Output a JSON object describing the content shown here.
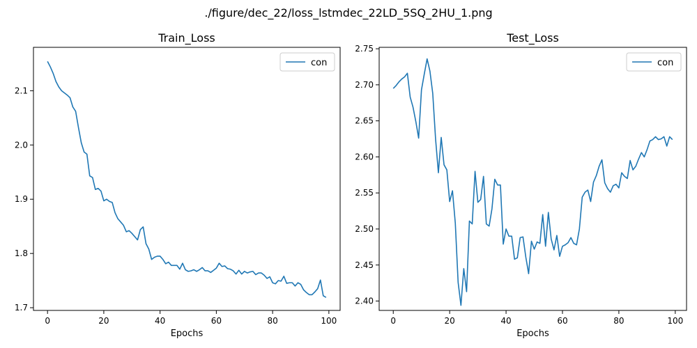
{
  "figure_title": "./figure/dec_22/loss_lstmdec_22LD_5SQ_2HU_1.png",
  "colors": {
    "series": "#1f77b4",
    "axes": "#000000",
    "legend_border": "#cccccc"
  },
  "chart_data": [
    {
      "type": "line",
      "title": "Train_Loss",
      "xlabel": "Epochs",
      "ylabel": "",
      "xlim": [
        -5,
        104
      ],
      "ylim": [
        1.695,
        2.18
      ],
      "xticks": [
        0,
        20,
        40,
        60,
        80,
        100
      ],
      "yticks": [
        1.7,
        1.8,
        1.9,
        2.0,
        2.1
      ],
      "xtick_labels": [
        "0",
        "20",
        "40",
        "60",
        "80",
        "100"
      ],
      "ytick_labels": [
        "1.7",
        "1.8",
        "1.9",
        "2.0",
        "2.1"
      ],
      "legend": {
        "position": "top-right",
        "entries": [
          "con"
        ]
      },
      "grid": false,
      "series": [
        {
          "name": "con",
          "x": [
            0,
            1,
            2,
            3,
            4,
            5,
            6,
            7,
            8,
            9,
            10,
            11,
            12,
            13,
            14,
            15,
            16,
            17,
            18,
            19,
            20,
            21,
            22,
            23,
            24,
            25,
            26,
            27,
            28,
            29,
            30,
            31,
            32,
            33,
            34,
            35,
            36,
            37,
            38,
            39,
            40,
            41,
            42,
            43,
            44,
            45,
            46,
            47,
            48,
            49,
            50,
            51,
            52,
            53,
            54,
            55,
            56,
            57,
            58,
            59,
            60,
            61,
            62,
            63,
            64,
            65,
            66,
            67,
            68,
            69,
            70,
            71,
            72,
            73,
            74,
            75,
            76,
            77,
            78,
            79,
            80,
            81,
            82,
            83,
            84,
            85,
            86,
            87,
            88,
            89,
            90,
            91,
            92,
            93,
            94,
            95,
            96,
            97,
            98,
            99
          ],
          "values": [
            2.154,
            2.144,
            2.132,
            2.117,
            2.107,
            2.1,
            2.096,
            2.092,
            2.087,
            2.07,
            2.062,
            2.032,
            2.004,
            1.987,
            1.983,
            1.943,
            1.94,
            1.918,
            1.92,
            1.915,
            1.897,
            1.9,
            1.896,
            1.894,
            1.875,
            1.864,
            1.858,
            1.852,
            1.84,
            1.842,
            1.837,
            1.831,
            1.825,
            1.844,
            1.849,
            1.818,
            1.808,
            1.789,
            1.793,
            1.795,
            1.795,
            1.789,
            1.781,
            1.784,
            1.778,
            1.778,
            1.778,
            1.771,
            1.782,
            1.77,
            1.767,
            1.768,
            1.77,
            1.767,
            1.77,
            1.774,
            1.768,
            1.768,
            1.765,
            1.769,
            1.773,
            1.782,
            1.776,
            1.777,
            1.772,
            1.771,
            1.768,
            1.762,
            1.769,
            1.762,
            1.767,
            1.764,
            1.766,
            1.767,
            1.761,
            1.764,
            1.764,
            1.76,
            1.754,
            1.757,
            1.746,
            1.744,
            1.75,
            1.749,
            1.758,
            1.745,
            1.746,
            1.746,
            1.74,
            1.746,
            1.743,
            1.733,
            1.728,
            1.724,
            1.724,
            1.729,
            1.735,
            1.751,
            1.722,
            1.719
          ]
        }
      ]
    },
    {
      "type": "line",
      "title": "Test_Loss",
      "xlabel": "Epochs",
      "ylabel": "",
      "xlim": [
        -5,
        104
      ],
      "ylim": [
        2.387,
        2.752
      ],
      "xticks": [
        0,
        20,
        40,
        60,
        80,
        100
      ],
      "yticks": [
        2.4,
        2.45,
        2.5,
        2.55,
        2.6,
        2.65,
        2.7,
        2.75
      ],
      "xtick_labels": [
        "0",
        "20",
        "40",
        "60",
        "80",
        "100"
      ],
      "ytick_labels": [
        "2.40",
        "2.45",
        "2.50",
        "2.55",
        "2.60",
        "2.65",
        "2.70",
        "2.75"
      ],
      "legend": {
        "position": "top-right",
        "entries": [
          "con"
        ]
      },
      "grid": false,
      "series": [
        {
          "name": "con",
          "x": [
            0,
            1,
            2,
            3,
            4,
            5,
            6,
            7,
            8,
            9,
            10,
            11,
            12,
            13,
            14,
            15,
            16,
            17,
            18,
            19,
            20,
            21,
            22,
            23,
            24,
            25,
            26,
            27,
            28,
            29,
            30,
            31,
            32,
            33,
            34,
            35,
            36,
            37,
            38,
            39,
            40,
            41,
            42,
            43,
            44,
            45,
            46,
            47,
            48,
            49,
            50,
            51,
            52,
            53,
            54,
            55,
            56,
            57,
            58,
            59,
            60,
            61,
            62,
            63,
            64,
            65,
            66,
            67,
            68,
            69,
            70,
            71,
            72,
            73,
            74,
            75,
            76,
            77,
            78,
            79,
            80,
            81,
            82,
            83,
            84,
            85,
            86,
            87,
            88,
            89,
            90,
            91,
            92,
            93,
            94,
            95,
            96,
            97,
            98,
            99
          ],
          "values": [
            2.695,
            2.699,
            2.704,
            2.708,
            2.711,
            2.716,
            2.683,
            2.669,
            2.649,
            2.626,
            2.693,
            2.715,
            2.736,
            2.719,
            2.688,
            2.625,
            2.578,
            2.627,
            2.589,
            2.582,
            2.538,
            2.553,
            2.508,
            2.426,
            2.394,
            2.445,
            2.413,
            2.511,
            2.507,
            2.58,
            2.537,
            2.541,
            2.573,
            2.507,
            2.504,
            2.528,
            2.569,
            2.561,
            2.561,
            2.479,
            2.5,
            2.49,
            2.49,
            2.458,
            2.46,
            2.488,
            2.489,
            2.461,
            2.438,
            2.483,
            2.472,
            2.482,
            2.48,
            2.52,
            2.476,
            2.523,
            2.486,
            2.471,
            2.491,
            2.462,
            2.476,
            2.478,
            2.481,
            2.488,
            2.48,
            2.478,
            2.5,
            2.544,
            2.551,
            2.554,
            2.538,
            2.565,
            2.574,
            2.587,
            2.596,
            2.564,
            2.556,
            2.551,
            2.56,
            2.562,
            2.557,
            2.578,
            2.573,
            2.57,
            2.595,
            2.582,
            2.587,
            2.597,
            2.606,
            2.6,
            2.61,
            2.622,
            2.624,
            2.628,
            2.624,
            2.625,
            2.628,
            2.615,
            2.628,
            2.624
          ]
        }
      ]
    }
  ]
}
